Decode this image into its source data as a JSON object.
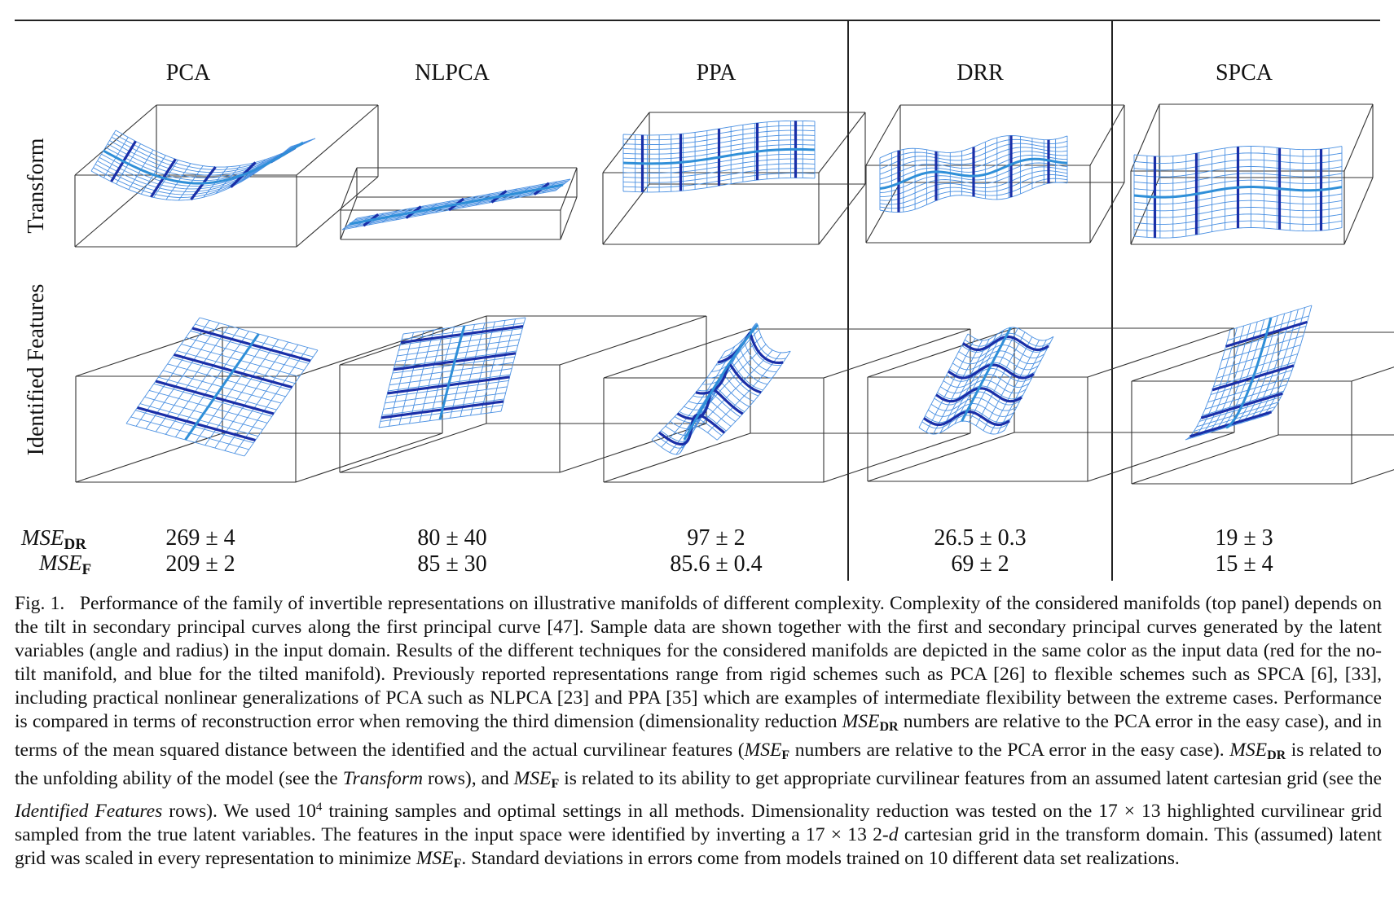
{
  "columns": [
    "PCA",
    "NLPCA",
    "PPA",
    "DRR",
    "SPCA"
  ],
  "rows": {
    "transform": "Transform",
    "features": "Identified Features"
  },
  "mse": {
    "dr_label_main": "MSE",
    "dr_label_sub": "DR",
    "f_label_main": "MSE",
    "f_label_sub": "F",
    "dr_values": [
      "269 ± 4",
      "80 ± 40",
      "97 ± 2",
      "26.5 ± 0.3",
      "19 ± 3"
    ],
    "f_values": [
      "209 ± 2",
      "85 ± 30",
      "85.6 ± 0.4",
      "69 ± 2",
      "15 ± 4"
    ]
  },
  "caption": {
    "fig": "Fig. 1.",
    "p1": "Performance of the family of invertible representations on illustrative manifolds of different complexity. Complexity of the considered manifolds (top panel) depends on the tilt in secondary principal curves along the first principal curve [47]. Sample data are shown together with the first and secondary principal curves generated by the latent variables (angle and radius) in the input domain. Results of the different techniques for the considered manifolds are depicted in the same color as the input data (red for the no-tilt manifold, and blue for the tilted manifold). Previously reported representations range from rigid schemes such as PCA [26] to flexible schemes such as SPCA [6], [33], including practical nonlinear generalizations of PCA such as NLPCA [23] and PPA [35] which are examples of intermediate flexibility between the extreme cases. Performance is compared in terms of reconstruction error when removing the third dimension (dimensionality reduction",
    "mse": "MSE",
    "dr": "DR",
    "f": "F",
    "p2": "numbers are relative to the PCA error in the easy case), and in terms of the mean squared distance between the identified and the actual curvilinear features (",
    "p3": "numbers are relative to the PCA error in the easy case).",
    "p4": "is related to the unfolding ability of the model (see the",
    "transform_word": "Transform",
    "p5": "rows), and",
    "p6": "is related to its ability to get appropriate curvilinear features from an assumed latent cartesian grid (see the",
    "features_word": "Identified Features",
    "p7": "rows). We used 10",
    "exp": "4",
    "p8": "training samples and optimal settings in all methods. Dimensionality reduction was tested on the 17 × 13 highlighted curvilinear grid sampled from the true latent variables. The features in the input space were identified by inverting a 17 × 13 2-",
    "d": "d",
    "p9": "cartesian grid in the transform domain. This (assumed) latent grid was scaled in every representation to minimize",
    "p10": ". Standard deviations in errors come from models trained on 10 different data set realizations."
  },
  "colors": {
    "mesh": "#4a90e2",
    "curve": "#1a2fa8",
    "curve_light": "#2f8fd8",
    "box": "#333333"
  }
}
